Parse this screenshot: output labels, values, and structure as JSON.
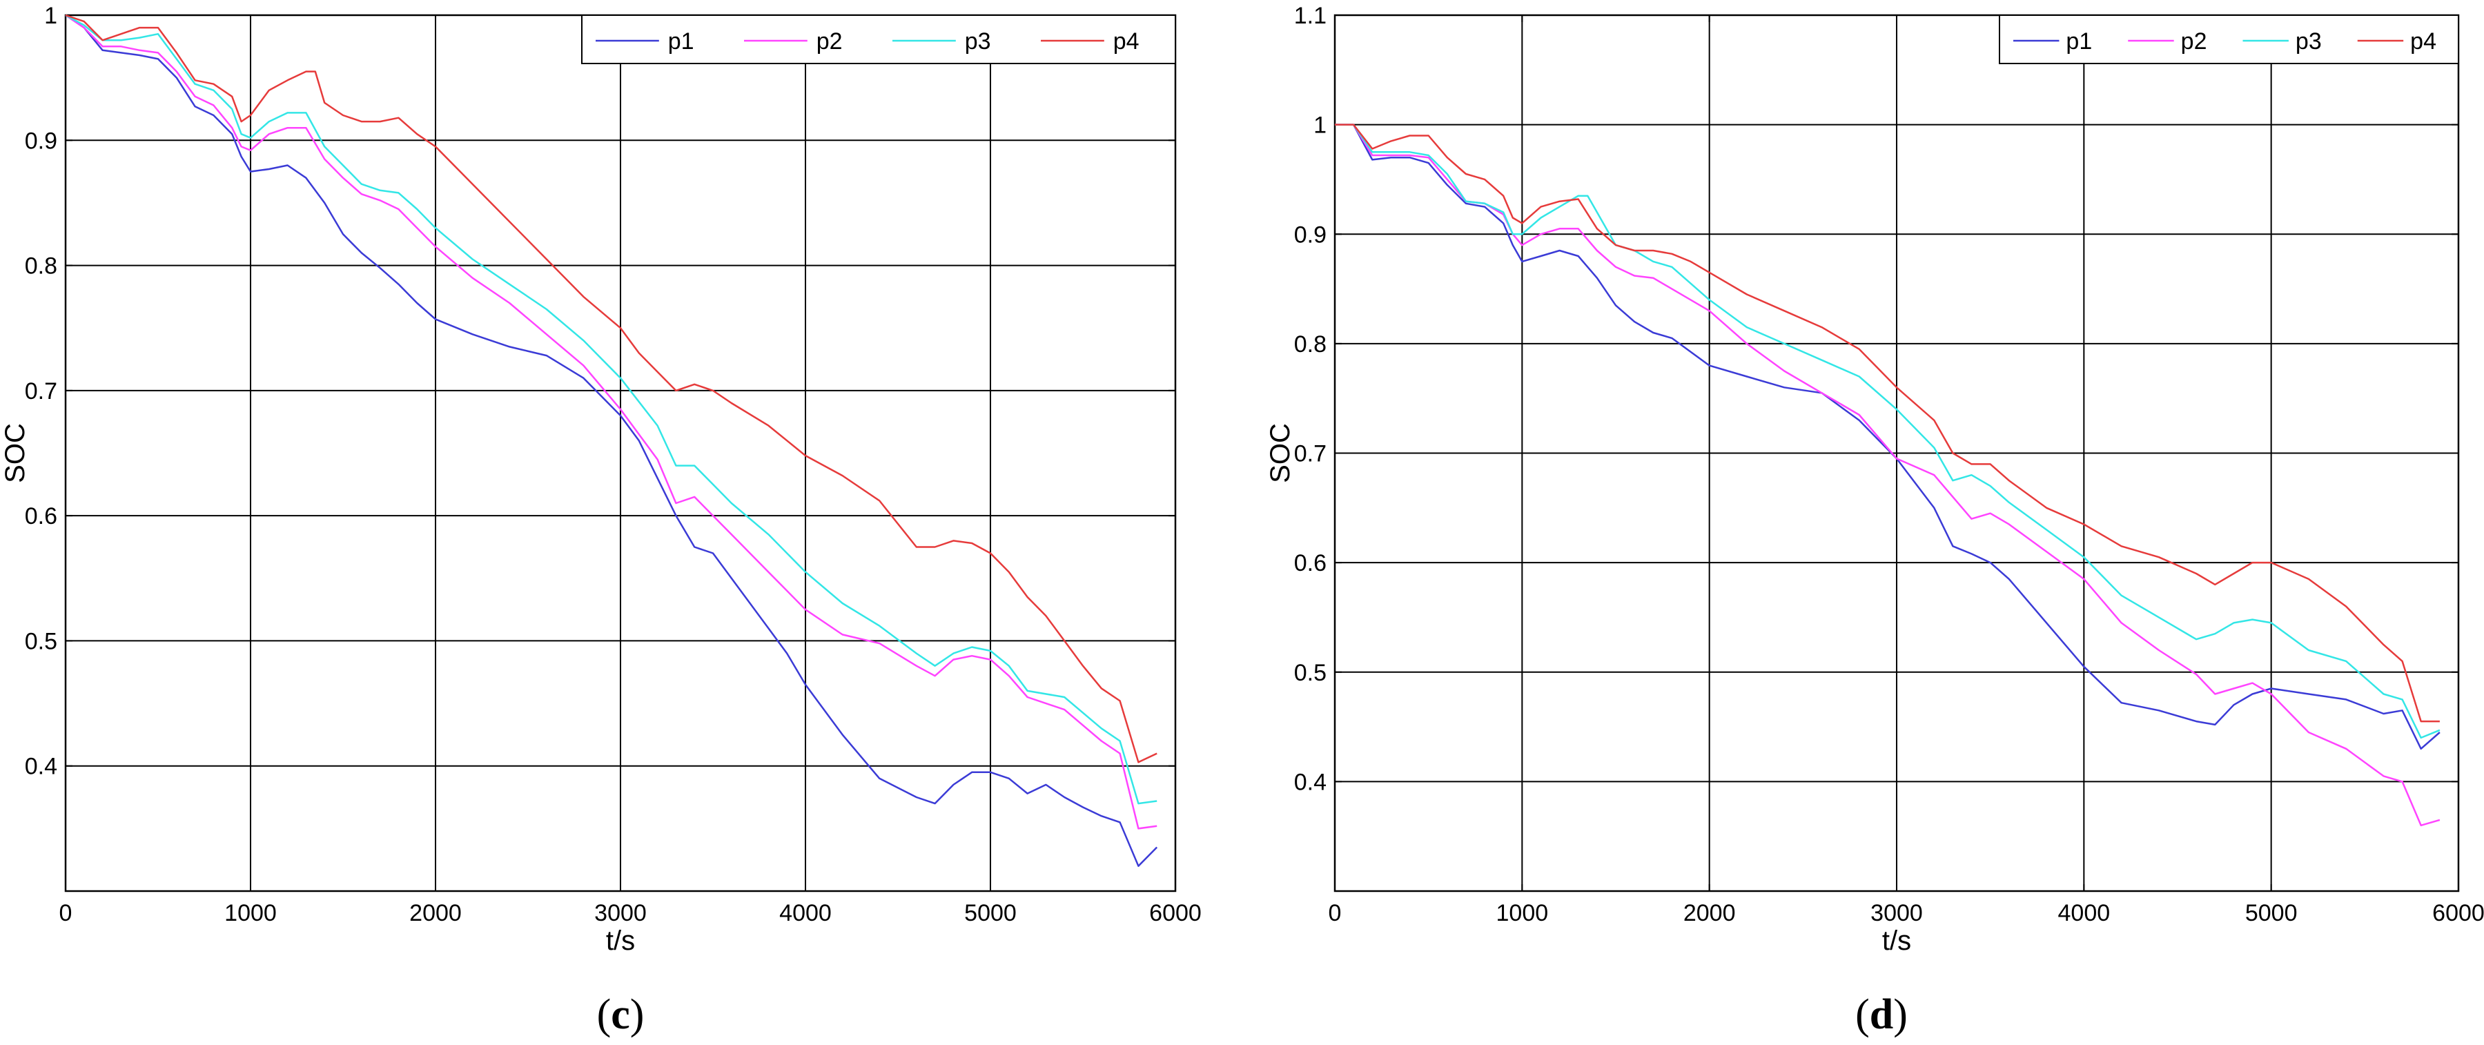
{
  "chart_data": [
    {
      "type": "line",
      "caption": "(c)",
      "xlabel": "t/s",
      "ylabel": "SOC",
      "xlim": [
        0,
        6000
      ],
      "ylim": [
        0.3,
        1.0
      ],
      "x_ticks": [
        0,
        1000,
        2000,
        3000,
        4000,
        5000,
        6000
      ],
      "x_tick_labels": [
        "0",
        "1000",
        "2000",
        "3000",
        "4000",
        "5000",
        "6000"
      ],
      "y_ticks": [
        0.4,
        0.5,
        0.6,
        0.7,
        0.8,
        0.9,
        1.0
      ],
      "y_tick_labels": [
        "0.4",
        "0.5",
        "0.6",
        "0.7",
        "0.8",
        "0.9",
        "1"
      ],
      "grid": true,
      "legend_position": "top-right",
      "series": [
        {
          "name": "p1",
          "color": "#3b3bd6",
          "x": [
            0,
            100,
            200,
            300,
            400,
            500,
            600,
            700,
            800,
            900,
            950,
            1000,
            1100,
            1200,
            1300,
            1400,
            1500,
            1600,
            1700,
            1800,
            1900,
            2000,
            2200,
            2400,
            2600,
            2800,
            3000,
            3100,
            3200,
            3300,
            3400,
            3500,
            3600,
            3700,
            3800,
            3900,
            4000,
            4200,
            4400,
            4600,
            4700,
            4800,
            4900,
            5000,
            5100,
            5200,
            5300,
            5400,
            5500,
            5600,
            5700,
            5800,
            5900
          ],
          "y": [
            1.0,
            0.99,
            0.972,
            0.97,
            0.968,
            0.965,
            0.95,
            0.927,
            0.92,
            0.905,
            0.887,
            0.875,
            0.877,
            0.88,
            0.87,
            0.85,
            0.825,
            0.81,
            0.798,
            0.785,
            0.77,
            0.757,
            0.745,
            0.735,
            0.728,
            0.71,
            0.68,
            0.66,
            0.63,
            0.6,
            0.575,
            0.57,
            0.55,
            0.53,
            0.51,
            0.49,
            0.465,
            0.425,
            0.39,
            0.375,
            0.37,
            0.385,
            0.395,
            0.395,
            0.39,
            0.378,
            0.385,
            0.375,
            0.367,
            0.36,
            0.355,
            0.32,
            0.335
          ]
        },
        {
          "name": "p2",
          "color": "#ff44ff",
          "x": [
            0,
            100,
            200,
            300,
            400,
            500,
            600,
            700,
            800,
            900,
            950,
            1000,
            1100,
            1200,
            1300,
            1400,
            1500,
            1600,
            1700,
            1800,
            1900,
            2000,
            2200,
            2400,
            2600,
            2800,
            3000,
            3200,
            3300,
            3400,
            3500,
            3600,
            3800,
            4000,
            4200,
            4400,
            4600,
            4700,
            4800,
            4900,
            5000,
            5100,
            5200,
            5400,
            5600,
            5700,
            5800,
            5900
          ],
          "y": [
            1.0,
            0.99,
            0.975,
            0.975,
            0.972,
            0.97,
            0.955,
            0.935,
            0.928,
            0.91,
            0.895,
            0.892,
            0.905,
            0.91,
            0.91,
            0.885,
            0.87,
            0.857,
            0.852,
            0.845,
            0.83,
            0.815,
            0.79,
            0.77,
            0.745,
            0.72,
            0.685,
            0.645,
            0.61,
            0.615,
            0.6,
            0.585,
            0.555,
            0.525,
            0.505,
            0.498,
            0.48,
            0.472,
            0.485,
            0.488,
            0.485,
            0.472,
            0.455,
            0.445,
            0.42,
            0.41,
            0.35,
            0.352
          ]
        },
        {
          "name": "p3",
          "color": "#33e6e6",
          "x": [
            0,
            100,
            200,
            300,
            400,
            500,
            600,
            700,
            800,
            900,
            950,
            1000,
            1100,
            1200,
            1300,
            1400,
            1500,
            1600,
            1700,
            1800,
            1900,
            2000,
            2200,
            2400,
            2600,
            2800,
            3000,
            3200,
            3300,
            3400,
            3500,
            3600,
            3800,
            4000,
            4200,
            4400,
            4600,
            4700,
            4800,
            4900,
            5000,
            5100,
            5200,
            5400,
            5600,
            5700,
            5800,
            5900
          ],
          "y": [
            1.0,
            0.992,
            0.98,
            0.98,
            0.982,
            0.985,
            0.965,
            0.945,
            0.94,
            0.925,
            0.905,
            0.902,
            0.915,
            0.922,
            0.922,
            0.895,
            0.88,
            0.865,
            0.86,
            0.858,
            0.845,
            0.83,
            0.805,
            0.785,
            0.765,
            0.74,
            0.71,
            0.672,
            0.64,
            0.64,
            0.625,
            0.61,
            0.585,
            0.555,
            0.53,
            0.512,
            0.49,
            0.48,
            0.49,
            0.495,
            0.492,
            0.48,
            0.46,
            0.455,
            0.43,
            0.42,
            0.37,
            0.372
          ]
        },
        {
          "name": "p4",
          "color": "#e63b3b",
          "x": [
            0,
            100,
            200,
            300,
            400,
            500,
            600,
            700,
            800,
            900,
            950,
            1000,
            1100,
            1200,
            1300,
            1350,
            1400,
            1500,
            1600,
            1700,
            1800,
            1900,
            2000,
            2200,
            2400,
            2600,
            2800,
            3000,
            3100,
            3200,
            3300,
            3400,
            3500,
            3600,
            3800,
            4000,
            4200,
            4400,
            4600,
            4700,
            4800,
            4900,
            5000,
            5100,
            5200,
            5300,
            5400,
            5500,
            5600,
            5700,
            5800,
            5900
          ],
          "y": [
            1.0,
            0.995,
            0.98,
            0.985,
            0.99,
            0.99,
            0.97,
            0.948,
            0.945,
            0.935,
            0.915,
            0.92,
            0.94,
            0.948,
            0.955,
            0.955,
            0.93,
            0.92,
            0.915,
            0.915,
            0.918,
            0.905,
            0.895,
            0.865,
            0.835,
            0.805,
            0.775,
            0.75,
            0.73,
            0.715,
            0.7,
            0.705,
            0.7,
            0.69,
            0.672,
            0.648,
            0.632,
            0.612,
            0.575,
            0.575,
            0.58,
            0.578,
            0.57,
            0.555,
            0.535,
            0.52,
            0.5,
            0.48,
            0.462,
            0.452,
            0.403,
            0.41
          ]
        }
      ]
    },
    {
      "type": "line",
      "caption": "(d)",
      "xlabel": "t/s",
      "ylabel": "SOC",
      "xlim": [
        0,
        6000
      ],
      "ylim": [
        0.3,
        1.1
      ],
      "x_ticks": [
        0,
        1000,
        2000,
        3000,
        4000,
        5000,
        6000
      ],
      "x_tick_labels": [
        "0",
        "1000",
        "2000",
        "3000",
        "4000",
        "5000",
        "6000"
      ],
      "y_ticks": [
        0.4,
        0.5,
        0.6,
        0.7,
        0.8,
        0.9,
        1.0,
        1.1
      ],
      "y_tick_labels": [
        "0.4",
        "0.5",
        "0.6",
        "0.7",
        "0.8",
        "0.9",
        "1",
        "1.1"
      ],
      "grid": true,
      "legend_position": "top-right",
      "series": [
        {
          "name": "p1",
          "color": "#3b3bd6",
          "x": [
            0,
            100,
            200,
            300,
            400,
            500,
            600,
            700,
            800,
            900,
            950,
            1000,
            1100,
            1200,
            1300,
            1400,
            1500,
            1600,
            1700,
            1800,
            2000,
            2200,
            2400,
            2600,
            2800,
            3000,
            3200,
            3300,
            3400,
            3500,
            3600,
            3800,
            4000,
            4200,
            4400,
            4600,
            4700,
            4800,
            4900,
            5000,
            5200,
            5400,
            5600,
            5700,
            5800,
            5900
          ],
          "y": [
            1.0,
            1.0,
            0.968,
            0.97,
            0.97,
            0.965,
            0.945,
            0.928,
            0.925,
            0.91,
            0.89,
            0.875,
            0.88,
            0.885,
            0.88,
            0.86,
            0.835,
            0.82,
            0.81,
            0.805,
            0.78,
            0.77,
            0.76,
            0.755,
            0.73,
            0.695,
            0.65,
            0.615,
            0.608,
            0.6,
            0.585,
            0.545,
            0.505,
            0.472,
            0.465,
            0.455,
            0.452,
            0.47,
            0.48,
            0.485,
            0.48,
            0.475,
            0.462,
            0.465,
            0.43,
            0.445
          ]
        },
        {
          "name": "p2",
          "color": "#ff44ff",
          "x": [
            0,
            100,
            200,
            300,
            400,
            500,
            600,
            700,
            800,
            900,
            950,
            1000,
            1100,
            1200,
            1300,
            1400,
            1500,
            1600,
            1700,
            1800,
            2000,
            2200,
            2400,
            2600,
            2800,
            3000,
            3200,
            3300,
            3400,
            3500,
            3600,
            3800,
            4000,
            4200,
            4400,
            4600,
            4700,
            4800,
            4900,
            5000,
            5200,
            5400,
            5600,
            5700,
            5800,
            5900
          ],
          "y": [
            1.0,
            1.0,
            0.972,
            0.972,
            0.972,
            0.97,
            0.95,
            0.93,
            0.928,
            0.918,
            0.9,
            0.89,
            0.9,
            0.905,
            0.905,
            0.885,
            0.87,
            0.862,
            0.86,
            0.85,
            0.83,
            0.8,
            0.775,
            0.755,
            0.735,
            0.695,
            0.68,
            0.66,
            0.64,
            0.645,
            0.635,
            0.61,
            0.585,
            0.545,
            0.52,
            0.498,
            0.48,
            0.485,
            0.49,
            0.48,
            0.445,
            0.43,
            0.405,
            0.4,
            0.36,
            0.365
          ]
        },
        {
          "name": "p3",
          "color": "#33e6e6",
          "x": [
            0,
            100,
            200,
            300,
            400,
            500,
            600,
            700,
            800,
            900,
            950,
            1000,
            1100,
            1200,
            1300,
            1350,
            1400,
            1500,
            1600,
            1700,
            1800,
            2000,
            2200,
            2400,
            2600,
            2800,
            3000,
            3200,
            3300,
            3400,
            3500,
            3600,
            3800,
            4000,
            4200,
            4400,
            4600,
            4700,
            4800,
            4900,
            5000,
            5200,
            5400,
            5600,
            5700,
            5800,
            5900
          ],
          "y": [
            1.0,
            1.0,
            0.975,
            0.975,
            0.975,
            0.972,
            0.955,
            0.93,
            0.928,
            0.92,
            0.9,
            0.9,
            0.915,
            0.925,
            0.935,
            0.935,
            0.92,
            0.89,
            0.885,
            0.875,
            0.87,
            0.84,
            0.815,
            0.8,
            0.785,
            0.77,
            0.74,
            0.705,
            0.675,
            0.68,
            0.67,
            0.655,
            0.63,
            0.605,
            0.57,
            0.55,
            0.53,
            0.535,
            0.545,
            0.548,
            0.545,
            0.52,
            0.51,
            0.48,
            0.475,
            0.44,
            0.447
          ]
        },
        {
          "name": "p4",
          "color": "#e63b3b",
          "x": [
            0,
            100,
            200,
            300,
            400,
            500,
            600,
            700,
            800,
            900,
            950,
            1000,
            1100,
            1200,
            1300,
            1400,
            1500,
            1600,
            1700,
            1800,
            1900,
            2000,
            2200,
            2400,
            2600,
            2800,
            3000,
            3200,
            3300,
            3400,
            3500,
            3600,
            3800,
            4000,
            4200,
            4400,
            4600,
            4700,
            4800,
            4900,
            5000,
            5200,
            5400,
            5600,
            5700,
            5800,
            5900
          ],
          "y": [
            1.0,
            1.0,
            0.978,
            0.985,
            0.99,
            0.99,
            0.97,
            0.955,
            0.95,
            0.935,
            0.915,
            0.91,
            0.925,
            0.93,
            0.932,
            0.905,
            0.89,
            0.885,
            0.885,
            0.882,
            0.875,
            0.865,
            0.845,
            0.83,
            0.815,
            0.795,
            0.76,
            0.73,
            0.7,
            0.69,
            0.69,
            0.675,
            0.65,
            0.635,
            0.615,
            0.605,
            0.59,
            0.58,
            0.59,
            0.6,
            0.6,
            0.585,
            0.56,
            0.525,
            0.51,
            0.455,
            0.455
          ]
        }
      ]
    }
  ]
}
